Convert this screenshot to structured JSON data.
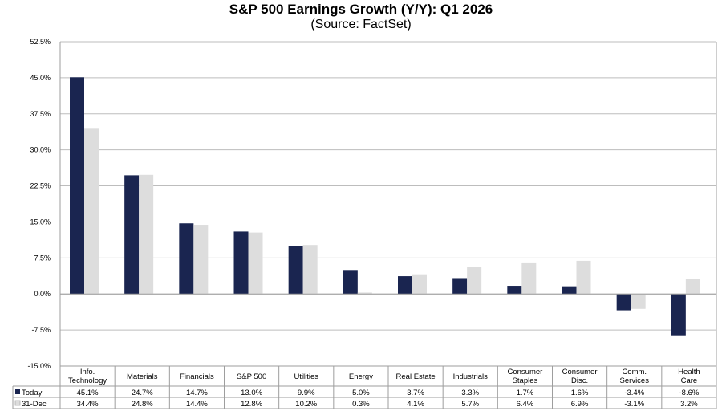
{
  "chart_data": {
    "type": "bar",
    "title": "S&P 500 Earnings Growth (Y/Y): Q1 2026",
    "subtitle": "(Source: FactSet)",
    "xlabel": "",
    "ylabel": "",
    "ylim": [
      -15.0,
      52.5
    ],
    "yticks": [
      "52.5%",
      "45.0%",
      "37.5%",
      "30.0%",
      "22.5%",
      "15.0%",
      "7.5%",
      "0.0%",
      "-7.5%",
      "-15.0%"
    ],
    "ytick_values": [
      52.5,
      45.0,
      37.5,
      30.0,
      22.5,
      15.0,
      7.5,
      0.0,
      -7.5,
      -15.0
    ],
    "grid": true,
    "categories": [
      [
        "Info.",
        "Technology"
      ],
      [
        "Materials"
      ],
      [
        "Financials"
      ],
      [
        "S&P 500"
      ],
      [
        "Utilities"
      ],
      [
        "Energy"
      ],
      [
        "Real Estate"
      ],
      [
        "Industrials"
      ],
      [
        "Consumer",
        "Staples"
      ],
      [
        "Consumer",
        "Disc."
      ],
      [
        "Comm.",
        "Services"
      ],
      [
        "Health",
        "Care"
      ]
    ],
    "series": [
      {
        "name": "Today",
        "color": "#1a2550",
        "values": [
          45.1,
          24.7,
          14.7,
          13.0,
          9.9,
          5.0,
          3.7,
          3.3,
          1.7,
          1.6,
          -3.4,
          -8.6
        ],
        "labels": [
          "45.1%",
          "24.7%",
          "14.7%",
          "13.0%",
          "9.9%",
          "5.0%",
          "3.7%",
          "3.3%",
          "1.7%",
          "1.6%",
          "-3.4%",
          "-8.6%"
        ]
      },
      {
        "name": "31-Dec",
        "color": "#dddddd",
        "values": [
          34.4,
          24.8,
          14.4,
          12.8,
          10.2,
          0.3,
          4.1,
          5.7,
          6.4,
          6.9,
          -3.1,
          3.2
        ],
        "labels": [
          "34.4%",
          "24.8%",
          "14.4%",
          "12.8%",
          "10.2%",
          "0.3%",
          "4.1%",
          "5.7%",
          "6.4%",
          "6.9%",
          "-3.1%",
          "3.2%"
        ]
      }
    ]
  }
}
